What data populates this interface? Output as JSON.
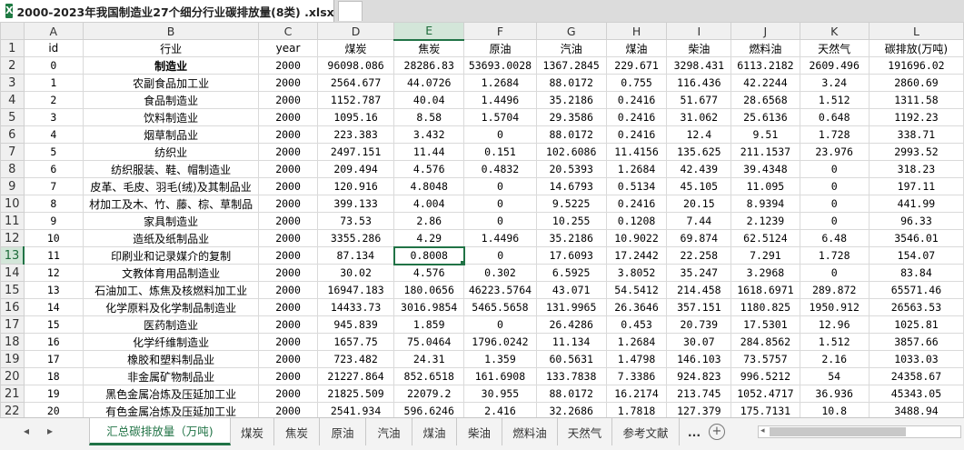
{
  "window": {
    "file_title": "2000-2023年我国制造业27个细分行业碳排放量(8类) .xlsx",
    "close_glyph": "×",
    "icon_letter": "X"
  },
  "columns": [
    "A",
    "B",
    "C",
    "D",
    "E",
    "F",
    "G",
    "H",
    "I",
    "J",
    "K",
    "L"
  ],
  "selected": {
    "column": "E",
    "row": "13"
  },
  "rows": [
    {
      "num": "1",
      "cells": [
        "id",
        "行业",
        "year",
        "煤炭",
        "焦炭",
        "原油",
        "汽油",
        "煤油",
        "柴油",
        "燃料油",
        "天然气",
        "碳排放(万吨)"
      ]
    },
    {
      "num": "2",
      "cells": [
        "0",
        "制造业",
        "2000",
        "96098.086",
        "28286.83",
        "53693.0028",
        "1367.2845",
        "229.671",
        "3298.431",
        "6113.2182",
        "2609.496",
        "191696.02"
      ]
    },
    {
      "num": "3",
      "cells": [
        "1",
        "农副食品加工业",
        "2000",
        "2564.677",
        "44.0726",
        "1.2684",
        "88.0172",
        "0.755",
        "116.436",
        "42.2244",
        "3.24",
        "2860.69"
      ]
    },
    {
      "num": "4",
      "cells": [
        "2",
        "食品制造业",
        "2000",
        "1152.787",
        "40.04",
        "1.4496",
        "35.2186",
        "0.2416",
        "51.677",
        "28.6568",
        "1.512",
        "1311.58"
      ]
    },
    {
      "num": "5",
      "cells": [
        "3",
        "饮料制造业",
        "2000",
        "1095.16",
        "8.58",
        "1.5704",
        "29.3586",
        "0.2416",
        "31.062",
        "25.6136",
        "0.648",
        "1192.23"
      ]
    },
    {
      "num": "6",
      "cells": [
        "4",
        "烟草制品业",
        "2000",
        "223.383",
        "3.432",
        "0",
        "88.0172",
        "0.2416",
        "12.4",
        "9.51",
        "1.728",
        "338.71"
      ]
    },
    {
      "num": "7",
      "cells": [
        "5",
        "纺织业",
        "2000",
        "2497.151",
        "11.44",
        "0.151",
        "102.6086",
        "11.4156",
        "135.625",
        "211.1537",
        "23.976",
        "2993.52"
      ]
    },
    {
      "num": "8",
      "cells": [
        "6",
        "纺织服装、鞋、帽制造业",
        "2000",
        "209.494",
        "4.576",
        "0.4832",
        "20.5393",
        "1.2684",
        "42.439",
        "39.4348",
        "0",
        "318.23"
      ]
    },
    {
      "num": "9",
      "cells": [
        "7",
        "皮革、毛皮、羽毛(绒)及其制品业",
        "2000",
        "120.916",
        "4.8048",
        "0",
        "14.6793",
        "0.5134",
        "45.105",
        "11.095",
        "0",
        "197.11"
      ]
    },
    {
      "num": "10",
      "cells": [
        "8",
        "材加工及木、竹、藤、棕、草制品",
        "2000",
        "399.133",
        "4.004",
        "0",
        "9.5225",
        "0.2416",
        "20.15",
        "8.9394",
        "0",
        "441.99"
      ]
    },
    {
      "num": "11",
      "cells": [
        "9",
        "家具制造业",
        "2000",
        "73.53",
        "2.86",
        "0",
        "10.255",
        "0.1208",
        "7.44",
        "2.1239",
        "0",
        "96.33"
      ]
    },
    {
      "num": "12",
      "cells": [
        "10",
        "造纸及纸制品业",
        "2000",
        "3355.286",
        "4.29",
        "1.4496",
        "35.2186",
        "10.9022",
        "69.874",
        "62.5124",
        "6.48",
        "3546.01"
      ]
    },
    {
      "num": "13",
      "cells": [
        "11",
        "印刷业和记录媒介的复制",
        "2000",
        "87.134",
        "0.8008",
        "0",
        "17.6093",
        "17.2442",
        "22.258",
        "7.291",
        "1.728",
        "154.07"
      ]
    },
    {
      "num": "14",
      "cells": [
        "12",
        "文教体育用品制造业",
        "2000",
        "30.02",
        "4.576",
        "0.302",
        "6.5925",
        "3.8052",
        "35.247",
        "3.2968",
        "0",
        "83.84"
      ]
    },
    {
      "num": "15",
      "cells": [
        "13",
        "石油加工、炼焦及核燃料加工业",
        "2000",
        "16947.183",
        "180.0656",
        "46223.5764",
        "43.071",
        "54.5412",
        "214.458",
        "1618.6971",
        "289.872",
        "65571.46"
      ]
    },
    {
      "num": "16",
      "cells": [
        "14",
        "化学原料及化学制品制造业",
        "2000",
        "14433.73",
        "3016.9854",
        "5465.5658",
        "131.9965",
        "26.3646",
        "357.151",
        "1180.825",
        "1950.912",
        "26563.53"
      ]
    },
    {
      "num": "17",
      "cells": [
        "15",
        "医药制造业",
        "2000",
        "945.839",
        "1.859",
        "0",
        "26.4286",
        "0.453",
        "20.739",
        "17.5301",
        "12.96",
        "1025.81"
      ]
    },
    {
      "num": "18",
      "cells": [
        "16",
        "化学纤维制造业",
        "2000",
        "1657.75",
        "75.0464",
        "1796.0242",
        "11.134",
        "1.2684",
        "30.07",
        "284.8562",
        "1.512",
        "3857.66"
      ]
    },
    {
      "num": "19",
      "cells": [
        "17",
        "橡胶和塑料制品业",
        "2000",
        "723.482",
        "24.31",
        "1.359",
        "60.5631",
        "1.4798",
        "146.103",
        "73.5757",
        "2.16",
        "1033.03"
      ]
    },
    {
      "num": "20",
      "cells": [
        "18",
        "非金属矿物制品业",
        "2000",
        "21227.864",
        "852.6518",
        "161.6908",
        "133.7838",
        "7.3386",
        "924.823",
        "996.5212",
        "54",
        "24358.67"
      ]
    },
    {
      "num": "21",
      "cells": [
        "19",
        "黑色金属冶炼及压延加工业",
        "2000",
        "21825.509",
        "22079.2",
        "30.955",
        "88.0172",
        "16.2174",
        "213.745",
        "1052.4717",
        "36.936",
        "45343.05"
      ]
    },
    {
      "num": "22",
      "cells": [
        "20",
        "有色金属冶炼及压延加工业",
        "2000",
        "2541.934",
        "596.6246",
        "2.416",
        "32.2686",
        "1.7818",
        "127.379",
        "175.7131",
        "10.8",
        "3488.94"
      ]
    }
  ],
  "sheet_tabs": [
    "汇总碳排放量（万吨)",
    "煤炭",
    "焦炭",
    "原油",
    "汽油",
    "煤油",
    "柴油",
    "燃料油",
    "天然气",
    "参考文献"
  ],
  "active_sheet": 0,
  "sheet_overflow": "...",
  "add_sheet_glyph": "+",
  "nav": {
    "prev": "◂",
    "next": "▸",
    "scroll_left": "◂"
  }
}
